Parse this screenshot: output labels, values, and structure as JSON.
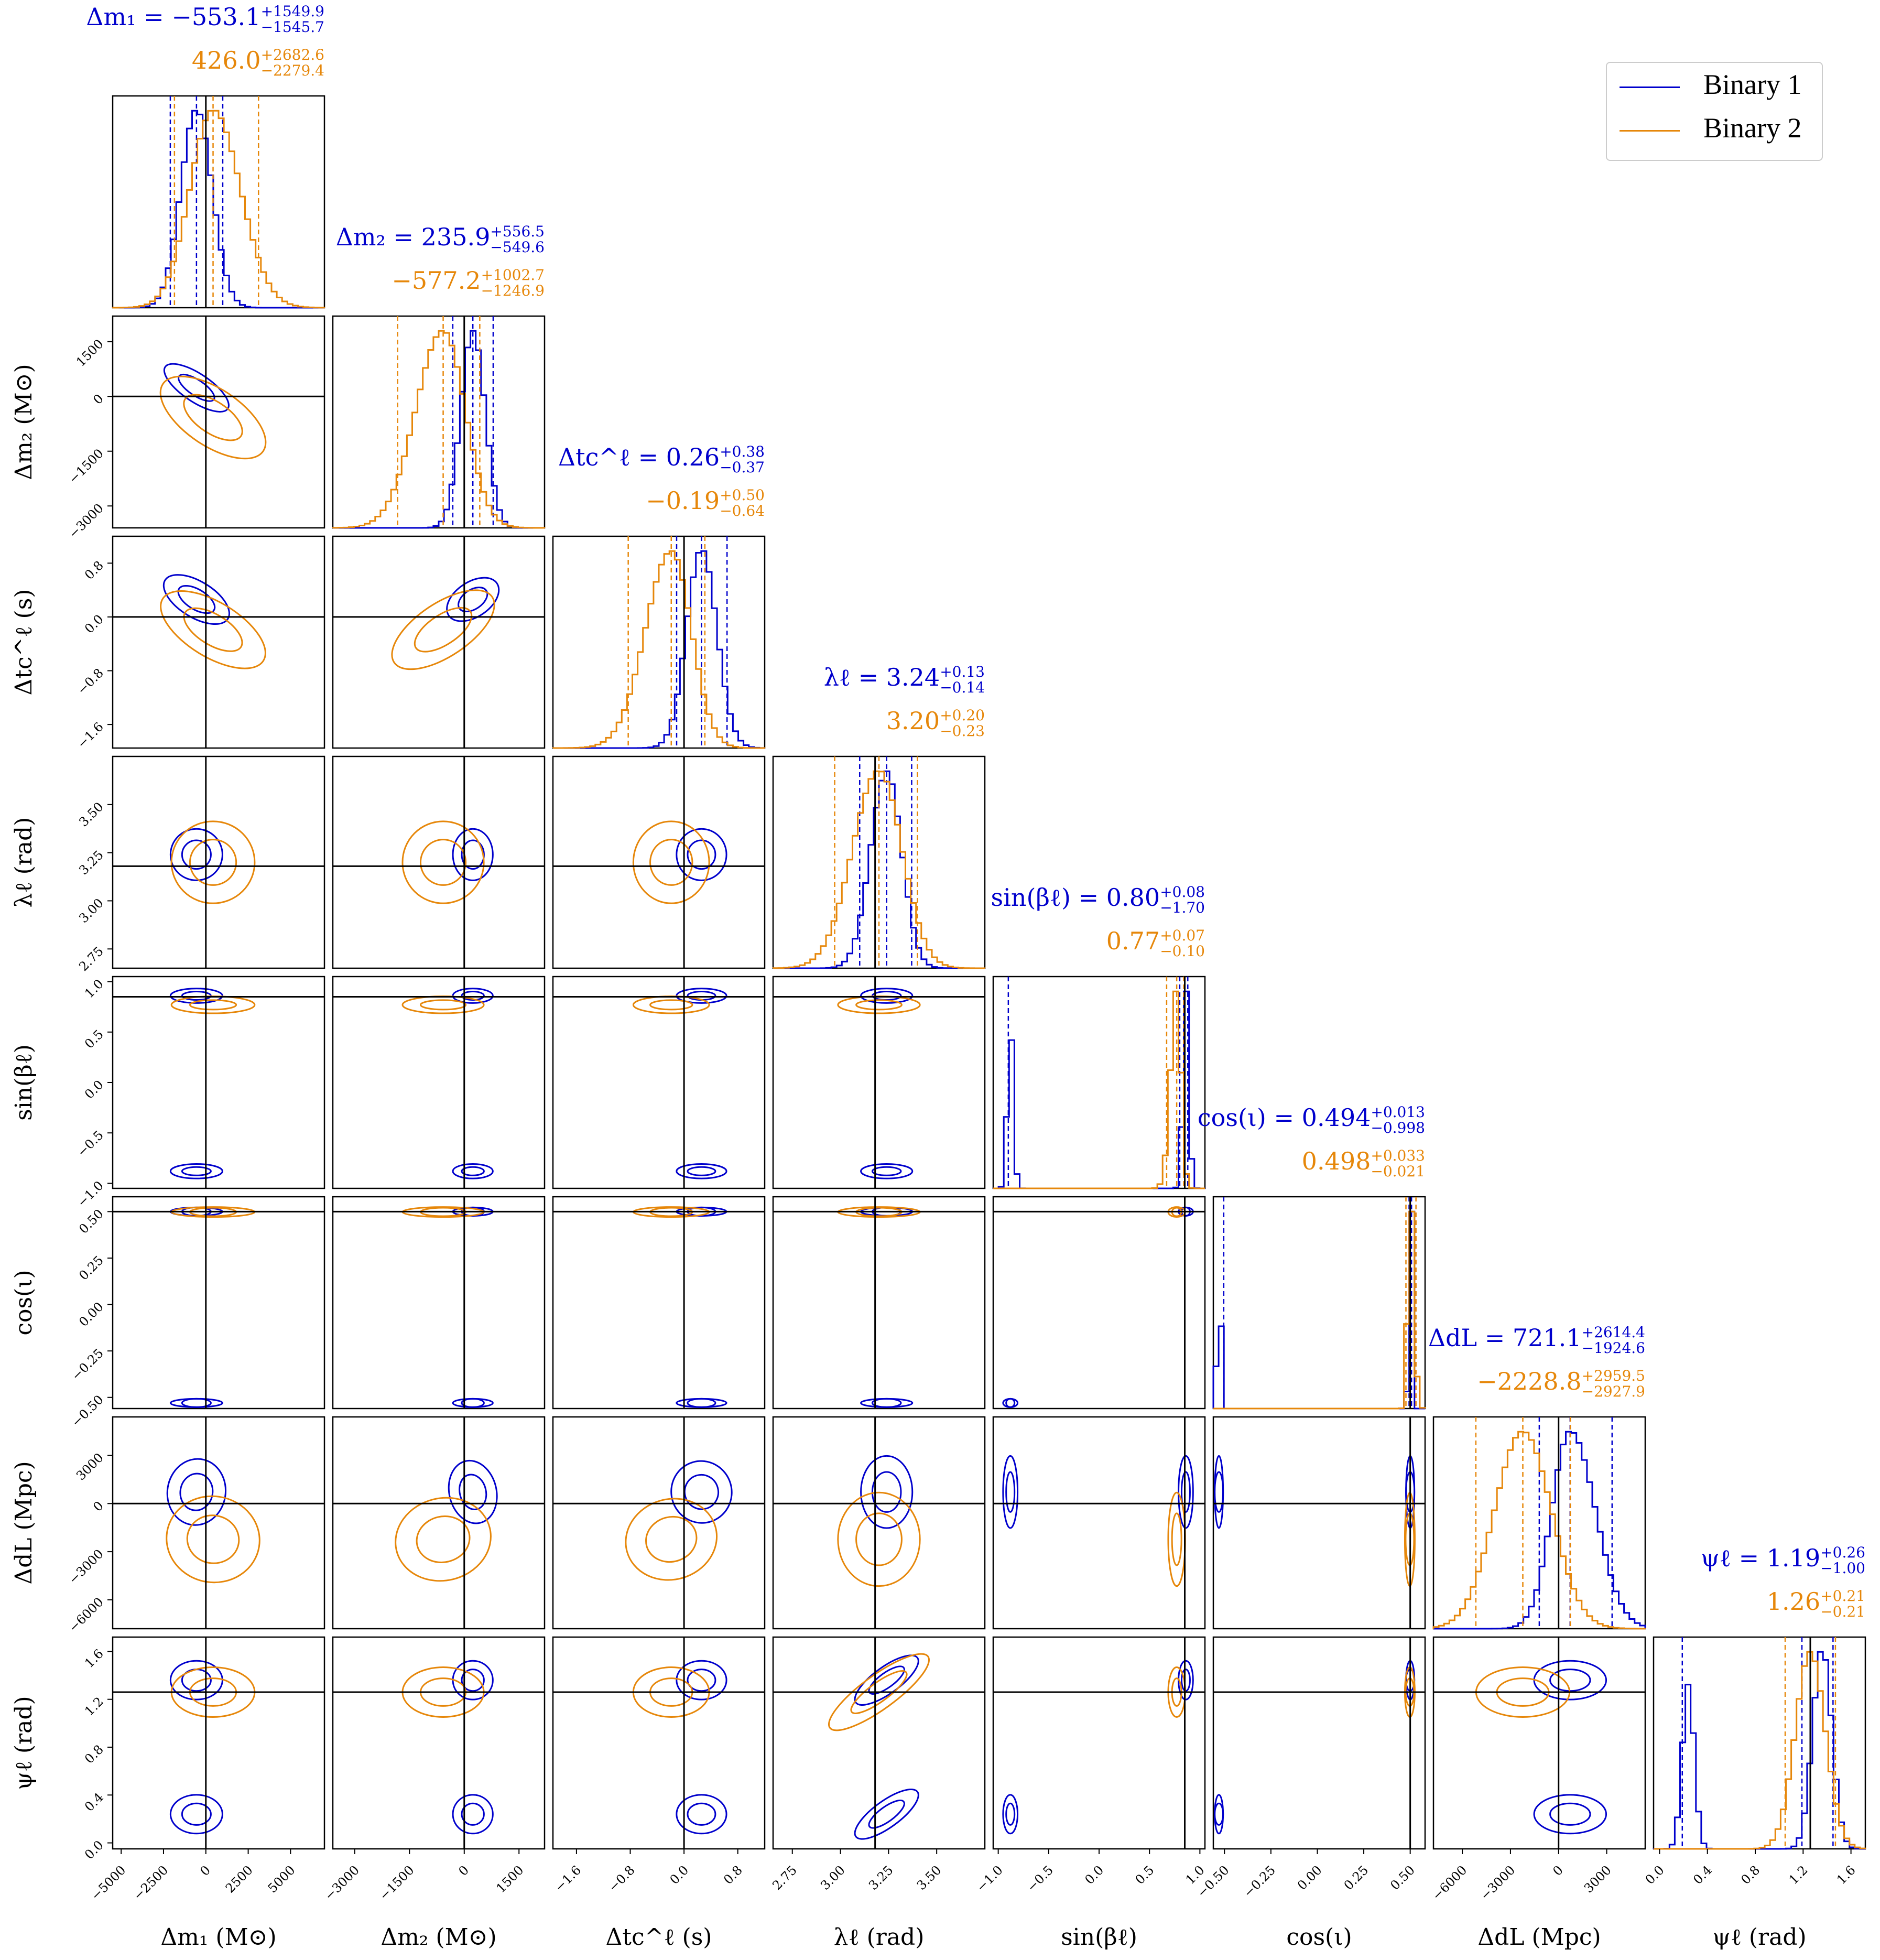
{
  "chart_data": {
    "type": "corner",
    "title": "",
    "params": [
      {
        "key": "dm1",
        "axis_label": "Δm₁ (M⊙)",
        "ylabel": "",
        "ticks": [
          -5000,
          -2500,
          0,
          2500,
          5000
        ],
        "tick_labels": [
          "−5000",
          "−2500",
          "0",
          "2500",
          "5000"
        ],
        "range": [
          -5500,
          7000
        ],
        "truth": 0
      },
      {
        "key": "dm2",
        "axis_label": "Δm₂ (M⊙)",
        "ylabel": "Δm₂ (M⊙)",
        "ticks": [
          -3000,
          -1500,
          0,
          1500
        ],
        "tick_labels": [
          "−3000",
          "−1500",
          "0",
          "1500"
        ],
        "range": [
          -3600,
          2200
        ],
        "truth": 0
      },
      {
        "key": "dtc",
        "axis_label": "Δtc^ℓ (s)",
        "ylabel": "Δtc^ℓ (s)",
        "ticks": [
          -1.6,
          -0.8,
          0.0,
          0.8
        ],
        "tick_labels": [
          "−1.6",
          "−0.8",
          "0.0",
          "0.8"
        ],
        "range": [
          -1.95,
          1.2
        ],
        "truth": 0.0
      },
      {
        "key": "lam",
        "axis_label": "λℓ (rad)",
        "ylabel": "λℓ (rad)",
        "ticks": [
          2.75,
          3.0,
          3.25,
          3.5
        ],
        "tick_labels": [
          "2.75",
          "3.00",
          "3.25",
          "3.50"
        ],
        "range": [
          2.65,
          3.75
        ],
        "truth": 3.18
      },
      {
        "key": "sinb",
        "axis_label": "sin(βℓ)",
        "ylabel": "sin(βℓ)",
        "ticks": [
          -1.0,
          -0.5,
          0.0,
          0.5,
          1.0
        ],
        "tick_labels": [
          "−1.0",
          "−0.5",
          "0.0",
          "0.5",
          "1.0"
        ],
        "range": [
          -1.05,
          1.05
        ],
        "truth": 0.85
      },
      {
        "key": "cosi",
        "axis_label": "cos(ι)",
        "ylabel": "cos(ι)",
        "ticks": [
          -0.5,
          -0.25,
          0.0,
          0.25,
          0.5
        ],
        "tick_labels": [
          "−0.50",
          "−0.25",
          "0.00",
          "0.25",
          "0.50"
        ],
        "range": [
          -0.56,
          0.58
        ],
        "truth": 0.5
      },
      {
        "key": "ddl",
        "axis_label": "ΔdL (Mpc)",
        "ylabel": "ΔdL (Mpc)",
        "ticks": [
          -6000,
          -3000,
          0,
          3000
        ],
        "tick_labels": [
          "−6000",
          "−3000",
          "0",
          "3000"
        ],
        "range": [
          -7800,
          5400
        ],
        "truth": 0
      },
      {
        "key": "psi",
        "axis_label": "ψℓ (rad)",
        "ylabel": "ψℓ (rad)",
        "ticks": [
          0.0,
          0.4,
          0.8,
          1.2,
          1.6
        ],
        "tick_labels": [
          "0.0",
          "0.4",
          "0.8",
          "1.2",
          "1.6"
        ],
        "range": [
          -0.05,
          1.72
        ],
        "truth": 1.26
      }
    ],
    "series": [
      {
        "name": "Binary 1",
        "color": "#0000cc",
        "values": [
          {
            "median": "−553.1",
            "plus": "+1549.9",
            "minus": "−1545.7"
          },
          {
            "median": "235.9",
            "plus": "+556.5",
            "minus": "−549.6"
          },
          {
            "median": "0.26",
            "plus": "+0.38",
            "minus": "−0.37"
          },
          {
            "median": "3.24",
            "plus": "+0.13",
            "minus": "−0.14"
          },
          {
            "median": "0.80",
            "plus": "+0.08",
            "minus": "−1.70"
          },
          {
            "median": "0.494",
            "plus": "+0.013",
            "minus": "−0.998"
          },
          {
            "median": "721.1",
            "plus": "+2614.4",
            "minus": "−1924.6"
          },
          {
            "median": "1.19",
            "plus": "+0.26",
            "minus": "−1.00"
          }
        ],
        "num": [
          {
            "m": -553.1,
            "p": 1549.9,
            "n": 1545.7
          },
          {
            "m": 235.9,
            "p": 556.5,
            "n": 549.6
          },
          {
            "m": 0.26,
            "p": 0.38,
            "n": 0.37
          },
          {
            "m": 3.24,
            "p": 0.13,
            "n": 0.14
          },
          {
            "m": 0.8,
            "p": 0.08,
            "n": 1.7
          },
          {
            "m": 0.494,
            "p": 0.013,
            "n": 0.998
          },
          {
            "m": 721.1,
            "p": 2614.4,
            "n": 1924.6
          },
          {
            "m": 1.19,
            "p": 0.26,
            "n": 1.0
          }
        ]
      },
      {
        "name": "Binary 2",
        "color": "#e6870a",
        "values": [
          {
            "median": "426.0",
            "plus": "+2682.6",
            "minus": "−2279.4"
          },
          {
            "median": "−577.2",
            "plus": "+1002.7",
            "minus": "−1246.9"
          },
          {
            "median": "−0.19",
            "plus": "+0.50",
            "minus": "−0.64"
          },
          {
            "median": "3.20",
            "plus": "+0.20",
            "minus": "−0.23"
          },
          {
            "median": "0.77",
            "plus": "+0.07",
            "minus": "−0.10"
          },
          {
            "median": "0.498",
            "plus": "+0.033",
            "minus": "−0.021"
          },
          {
            "median": "−2228.8",
            "plus": "+2959.5",
            "minus": "−2927.9"
          },
          {
            "median": "1.26",
            "plus": "+0.21",
            "minus": "−0.21"
          }
        ],
        "num": [
          {
            "m": 426.0,
            "p": 2682.6,
            "n": 2279.4
          },
          {
            "m": -577.2,
            "p": 1002.7,
            "n": 1246.9
          },
          {
            "m": -0.19,
            "p": 0.5,
            "n": 0.64
          },
          {
            "m": 3.2,
            "p": 0.2,
            "n": 0.23
          },
          {
            "m": 0.77,
            "p": 0.07,
            "n": 0.1
          },
          {
            "m": 0.498,
            "p": 0.033,
            "n": 0.021
          },
          {
            "m": -2228.8,
            "p": 2959.5,
            "n": 2927.9
          },
          {
            "m": 1.26,
            "p": 0.21,
            "n": 0.21
          }
        ]
      }
    ],
    "title_prefixes": [
      "Δm₁ = ",
      "Δm₂ = ",
      "Δtc^ℓ = ",
      "λℓ = ",
      "sin(βℓ) = ",
      "cos(ι) = ",
      "ΔdL = ",
      "ψℓ = "
    ],
    "legend": {
      "position": "top-right",
      "entries": [
        "Binary 1",
        "Binary 2"
      ]
    }
  }
}
